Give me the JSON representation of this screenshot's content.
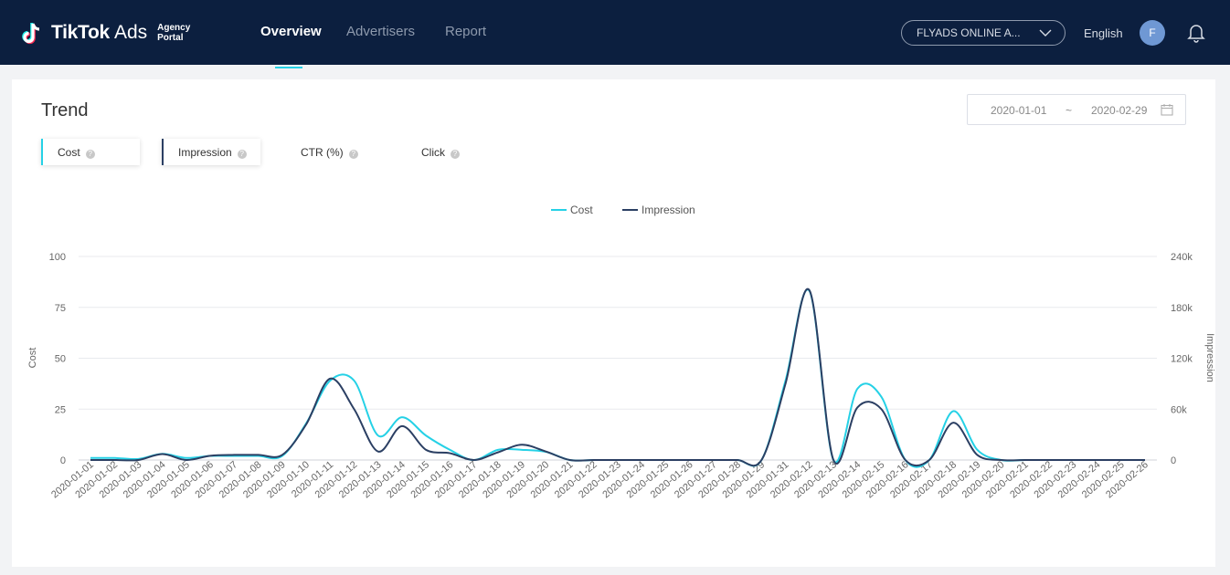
{
  "header": {
    "logo_text": "TikTok",
    "logo_ads": "Ads",
    "logo_sub1": "Agency",
    "logo_sub2": "Portal",
    "nav": [
      "Overview",
      "Advertisers",
      "Report"
    ],
    "account": "FLYADS ONLINE A...",
    "language": "English",
    "avatar_initial": "F"
  },
  "trend": {
    "title": "Trend",
    "date_start": "2020-01-01",
    "date_sep": "~",
    "date_end": "2020-02-29",
    "metrics": [
      {
        "label": "Cost",
        "selected": true,
        "color": "#25d1e6"
      },
      {
        "label": "Impression",
        "selected": true,
        "color": "#2b3f63"
      },
      {
        "label": "CTR (%)",
        "selected": false
      },
      {
        "label": "Click",
        "selected": false
      }
    ]
  },
  "chart_data": {
    "type": "line",
    "smooth": true,
    "legend": "top-center",
    "grid": true,
    "xlabel": "",
    "ylabel": "Cost",
    "y2label": "Impression",
    "ylim": [
      0,
      100
    ],
    "y2lim": [
      0,
      240000
    ],
    "yticks": [
      "0",
      "25",
      "50",
      "75",
      "100"
    ],
    "y2ticks": [
      "0",
      "60k",
      "120k",
      "180k",
      "240k"
    ],
    "categories": [
      "2020-01-01",
      "2020-01-02",
      "2020-01-03",
      "2020-01-04",
      "2020-01-05",
      "2020-01-06",
      "2020-01-07",
      "2020-01-08",
      "2020-01-09",
      "2020-01-10",
      "2020-01-11",
      "2020-01-12",
      "2020-01-13",
      "2020-01-14",
      "2020-01-15",
      "2020-01-16",
      "2020-01-17",
      "2020-01-18",
      "2020-01-19",
      "2020-01-20",
      "2020-01-21",
      "2020-01-22",
      "2020-01-23",
      "2020-01-24",
      "2020-01-25",
      "2020-01-26",
      "2020-01-27",
      "2020-01-28",
      "2020-01-29",
      "2020-01-31",
      "2020-02-12",
      "2020-02-13",
      "2020-02-14",
      "2020-02-15",
      "2020-02-16",
      "2020-02-17",
      "2020-02-18",
      "2020-02-19",
      "2020-02-20",
      "2020-02-21",
      "2020-02-22",
      "2020-02-23",
      "2020-02-24",
      "2020-02-25",
      "2020-02-26"
    ],
    "series": [
      {
        "name": "Cost",
        "axis": "left",
        "color": "#25d1e6",
        "values": [
          1,
          1,
          0.5,
          3,
          1,
          2,
          2,
          2,
          2,
          18,
          39,
          39,
          12,
          21,
          12,
          5,
          0,
          5,
          5,
          4,
          0,
          0,
          0,
          0,
          0,
          0,
          0,
          0,
          0,
          39,
          83,
          0,
          35,
          31,
          0,
          0,
          24,
          5,
          0,
          0,
          0,
          0,
          0,
          0,
          0
        ]
      },
      {
        "name": "Impression",
        "axis": "right",
        "color": "#2b3f63",
        "values": [
          0,
          0,
          0,
          7000,
          0,
          5000,
          6000,
          6000,
          6000,
          42000,
          96000,
          60000,
          10000,
          40000,
          12000,
          8000,
          0,
          9000,
          18000,
          10000,
          0,
          0,
          0,
          0,
          0,
          0,
          0,
          0,
          0,
          90000,
          200000,
          0,
          62000,
          60000,
          0,
          0,
          44000,
          6000,
          0,
          0,
          0,
          0,
          0,
          0,
          0
        ]
      }
    ]
  }
}
